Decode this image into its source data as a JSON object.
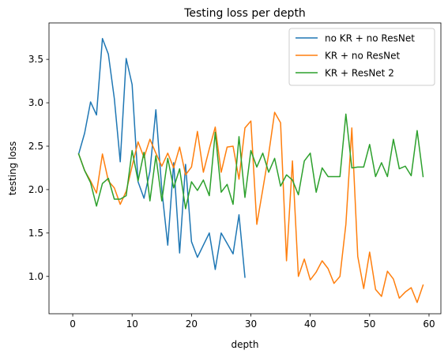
{
  "chart_data": {
    "type": "line",
    "title": "Testing loss per depth",
    "xlabel": "depth",
    "ylabel": "testing loss",
    "xlim": [
      -4,
      62
    ],
    "ylim": [
      0.57,
      3.92
    ],
    "xticks": [
      0,
      10,
      20,
      30,
      40,
      50,
      60
    ],
    "yticks": [
      1.0,
      1.5,
      2.0,
      2.5,
      3.0,
      3.5
    ],
    "grid": false,
    "legend_position": "top-right",
    "series": [
      {
        "name": "no KR + no ResNet",
        "color": "#1f77b4",
        "x": [
          1,
          2,
          3,
          4,
          5,
          6,
          7,
          8,
          9,
          10,
          11,
          12,
          13,
          14,
          15,
          16,
          17,
          18,
          19,
          20,
          21,
          22,
          23,
          24,
          25,
          26,
          27,
          28,
          29
        ],
        "y": [
          2.41,
          2.65,
          3.01,
          2.86,
          3.74,
          3.56,
          3.05,
          2.32,
          3.51,
          3.21,
          2.09,
          1.9,
          2.21,
          2.92,
          2.0,
          1.36,
          2.31,
          1.27,
          2.29,
          1.4,
          1.22,
          1.36,
          1.5,
          1.08,
          1.5,
          1.38,
          1.26,
          1.71,
          0.99
        ]
      },
      {
        "name": "KR + no ResNet",
        "color": "#ff7f0e",
        "x": [
          1,
          2,
          3,
          4,
          5,
          6,
          7,
          8,
          9,
          10,
          11,
          12,
          13,
          14,
          15,
          16,
          17,
          18,
          19,
          20,
          21,
          22,
          23,
          24,
          25,
          26,
          27,
          28,
          29,
          30,
          31,
          32,
          33,
          34,
          35,
          36,
          37,
          38,
          39,
          40,
          41,
          42,
          43,
          44,
          45,
          46,
          47,
          48,
          49,
          50,
          51,
          52,
          53,
          54,
          55,
          56,
          57,
          58,
          59
        ],
        "y": [
          2.41,
          2.22,
          2.1,
          1.96,
          2.41,
          2.1,
          2.02,
          1.83,
          1.98,
          2.27,
          2.55,
          2.37,
          2.58,
          2.42,
          2.27,
          2.42,
          2.25,
          2.49,
          2.17,
          2.26,
          2.67,
          2.2,
          2.47,
          2.72,
          2.2,
          2.49,
          2.5,
          2.12,
          2.71,
          2.79,
          1.6,
          2.0,
          2.41,
          2.89,
          2.77,
          1.18,
          2.33,
          1.0,
          1.2,
          0.96,
          1.05,
          1.18,
          1.09,
          0.92,
          1.0,
          1.6,
          2.71,
          1.23,
          0.86,
          1.28,
          0.85,
          0.77,
          1.06,
          0.97,
          0.75,
          0.82,
          0.87,
          0.7,
          0.9
        ]
      },
      {
        "name": "KR + ResNet 2",
        "color": "#2ca02c",
        "x": [
          1,
          2,
          3,
          4,
          5,
          6,
          7,
          8,
          9,
          10,
          11,
          12,
          13,
          14,
          15,
          16,
          17,
          18,
          19,
          20,
          21,
          22,
          23,
          24,
          25,
          26,
          27,
          28,
          29,
          30,
          31,
          32,
          33,
          34,
          35,
          36,
          37,
          38,
          39,
          40,
          41,
          42,
          43,
          44,
          45,
          46,
          47,
          48,
          49,
          50,
          51,
          52,
          53,
          54,
          55,
          56,
          57,
          58,
          59
        ],
        "y": [
          2.41,
          2.22,
          2.08,
          1.81,
          2.07,
          2.13,
          1.89,
          1.89,
          1.93,
          2.45,
          2.1,
          2.43,
          1.87,
          2.39,
          1.87,
          2.36,
          2.02,
          2.24,
          1.78,
          2.09,
          1.99,
          2.11,
          1.93,
          2.66,
          1.97,
          2.06,
          1.83,
          2.61,
          1.91,
          2.45,
          2.26,
          2.42,
          2.2,
          2.36,
          2.04,
          2.17,
          2.11,
          1.94,
          2.33,
          2.42,
          1.97,
          2.25,
          2.15,
          2.15,
          2.15,
          2.87,
          2.25,
          2.26,
          2.26,
          2.52,
          2.15,
          2.31,
          2.15,
          2.58,
          2.24,
          2.27,
          2.16,
          2.68,
          2.15
        ]
      }
    ]
  }
}
